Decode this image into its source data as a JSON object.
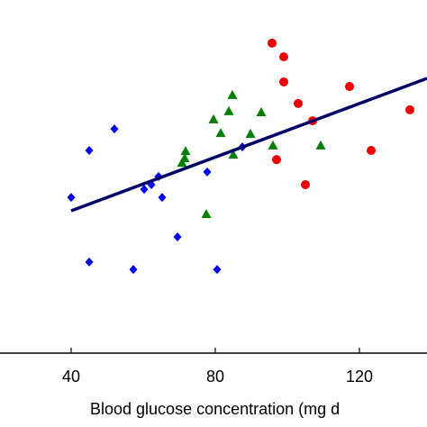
{
  "chart_data": {
    "type": "scatter",
    "x_label": "Blood glucose concentration (mg d",
    "xlim": [
      20.25,
      138.75
    ],
    "xticks": [
      40,
      80,
      120
    ],
    "ylim": [
      0,
      100
    ],
    "series": [
      {
        "color": "#0000ee",
        "marker": "diamond",
        "x": [
          40,
          45,
          52,
          45,
          57.25,
          60.25,
          62.25,
          64.25,
          65.25,
          69.5,
          77.75,
          80.5,
          87.5
        ],
        "values": [
          44.1,
          57.4,
          63.5,
          25.8,
          23.7,
          46.4,
          47.7,
          50,
          44.1,
          32.9,
          51.3,
          23.7,
          58.4
        ]
      },
      {
        "color": "#007f00",
        "marker": "triangle",
        "x": [
          70.75,
          71.75,
          71.5,
          77.5,
          79.5,
          81.5,
          83.75,
          84.75,
          85,
          89.75,
          92.75,
          96,
          109.25
        ],
        "values": [
          53.8,
          57.1,
          55.1,
          39.3,
          66.1,
          62.2,
          68.4,
          73,
          56.1,
          62,
          68.1,
          58.7,
          58.7
        ]
      },
      {
        "color": "#ee0000",
        "marker": "circle",
        "x": [
          95.75,
          99,
          99,
          103,
          107,
          97,
          105,
          117.25,
          123.25,
          134
        ],
        "values": [
          87.8,
          83.9,
          76.8,
          70.7,
          65.8,
          54.8,
          47.7,
          75.5,
          57.4,
          68.9
        ]
      }
    ],
    "fit_line": {
      "color": "#000066",
      "x": [
        40,
        138.75
      ],
      "values": [
        40.3,
        77.8
      ]
    }
  }
}
